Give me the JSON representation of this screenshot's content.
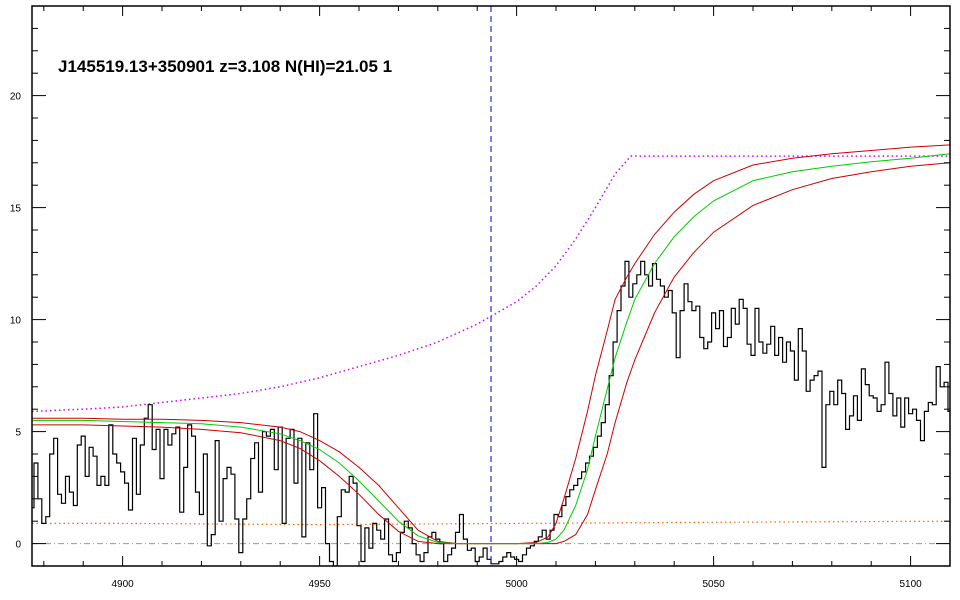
{
  "chart_data": {
    "type": "line",
    "title": "J145519.13+350901 z=3.108 N(HI)=21.05 1",
    "xlabel": "",
    "ylabel": "",
    "xlim": [
      4877,
      5110
    ],
    "ylim": [
      -1,
      24
    ],
    "x_ticks": [
      4900,
      4950,
      5000,
      5050,
      5100
    ],
    "y_ticks": [
      0,
      5,
      10,
      15,
      20
    ],
    "grid": false,
    "legend": "none",
    "marker_line": {
      "x": 4993.5,
      "style": "dashed",
      "color": "#0000cc"
    },
    "colors": {
      "spectrum": "#000000",
      "model_fit": "#00cc00",
      "model_bounds": "#cc0000",
      "continuum": "#cc00ff",
      "error": "#ff6600",
      "zero_line": "#999999",
      "marker": "#0000cc"
    },
    "series": [
      {
        "role": "spectrum",
        "style": "steps",
        "x": [
          4877,
          4878,
          4879,
          4880,
          4881,
          4882,
          4883,
          4884,
          4885,
          4886,
          4887,
          4888,
          4889,
          4890,
          4891,
          4892,
          4893,
          4894,
          4895,
          4896,
          4897,
          4898,
          4899,
          4900,
          4901,
          4902,
          4903,
          4904,
          4905,
          4906,
          4907,
          4908,
          4909,
          4910,
          4911,
          4912,
          4913,
          4914,
          4915,
          4916,
          4917,
          4918,
          4919,
          4920,
          4921,
          4922,
          4923,
          4924,
          4925,
          4926,
          4927,
          4928,
          4929,
          4930,
          4931,
          4932,
          4933,
          4934,
          4935,
          4936,
          4937,
          4938,
          4939,
          4940,
          4941,
          4942,
          4943,
          4944,
          4945,
          4946,
          4947,
          4948,
          4949,
          4950,
          4951,
          4952,
          4953,
          4954,
          4955,
          4956,
          4957,
          4958,
          4959,
          4960,
          4961,
          4962,
          4963,
          4964,
          4965,
          4966,
          4967,
          4968,
          4969,
          4970,
          4971,
          4972,
          4973,
          4974,
          4975,
          4976,
          4977,
          4978,
          4979,
          4980,
          4981,
          4982,
          4983,
          4984,
          4985,
          4986,
          4987,
          4988,
          4989,
          4990,
          4991,
          4992,
          4993,
          4994,
          4995,
          4996,
          4997,
          4998,
          4999,
          5000,
          5001,
          5002,
          5003,
          5004,
          5005,
          5006,
          5007,
          5008,
          5009,
          5010,
          5011,
          5012,
          5013,
          5014,
          5015,
          5016,
          5017,
          5018,
          5019,
          5020,
          5021,
          5022,
          5023,
          5024,
          5025,
          5026,
          5027,
          5028,
          5029,
          5030,
          5031,
          5032,
          5033,
          5034,
          5035,
          5036,
          5037,
          5038,
          5039,
          5040,
          5041,
          5042,
          5043,
          5044,
          5045,
          5046,
          5047,
          5048,
          5049,
          5050,
          5051,
          5052,
          5053,
          5054,
          5055,
          5056,
          5057,
          5058,
          5059,
          5060,
          5061,
          5062,
          5063,
          5064,
          5065,
          5066,
          5067,
          5068,
          5069,
          5070,
          5071,
          5072,
          5073,
          5074,
          5075,
          5076,
          5077,
          5078,
          5079,
          5080,
          5081,
          5082,
          5083,
          5084,
          5085,
          5086,
          5087,
          5088,
          5089,
          5090,
          5091,
          5092,
          5093,
          5094,
          5095,
          5096,
          5097,
          5098,
          5099,
          5100,
          5101,
          5102,
          5103,
          5104,
          5105,
          5106,
          5107,
          5108,
          5109,
          5110
        ],
        "y": [
          1.6,
          3.6,
          2.0,
          0.9,
          1.2,
          4.0,
          4.7,
          2.2,
          1.8,
          3.0,
          2.3,
          1.7,
          4.4,
          4.8,
          3.0,
          4.3,
          3.9,
          2.6,
          3.0,
          2.6,
          5.3,
          4.0,
          3.6,
          3.2,
          2.7,
          1.5,
          4.7,
          2.2,
          4.4,
          5.6,
          6.2,
          4.2,
          5.1,
          2.9,
          5.1,
          4.4,
          4.9,
          5.2,
          1.4,
          3.4,
          5.3,
          4.8,
          2.3,
          1.3,
          4.0,
          -0.1,
          0.4,
          4.6,
          1.0,
          2.9,
          3.4,
          3.1,
          1.1,
          -0.4,
          1.1,
          2.0,
          3.8,
          4.5,
          2.3,
          5.0,
          4.8,
          5.1,
          3.3,
          5.2,
          0.9,
          4.7,
          5.1,
          2.7,
          4.7,
          0.3,
          4.5,
          3.3,
          5.8,
          1.6,
          2.5,
          0.0,
          -0.8,
          -1.0,
          1.2,
          2.4,
          2.3,
          3.0,
          2.7,
          0.8,
          -0.8,
          0.7,
          -0.2,
          0.9,
          0.6,
          0.2,
          1.1,
          -0.5,
          -0.8,
          -0.4,
          0.5,
          1.0,
          0.7,
          0.0,
          -0.5,
          -0.8,
          -0.4,
          0.3,
          0.5,
          0.2,
          0.0,
          -0.8,
          -0.5,
          -0.2,
          0.5,
          1.3,
          0.2,
          -0.3,
          -0.2,
          -0.8,
          -0.6,
          -0.2,
          -0.7,
          -0.9,
          -0.9,
          -0.8,
          -0.6,
          -0.4,
          -0.6,
          -0.7,
          -0.8,
          -0.5,
          -0.2,
          -0.1,
          0.1,
          0.3,
          0.6,
          0.2,
          0.6,
          1.3,
          1.2,
          1.7,
          2.1,
          2.4,
          2.6,
          2.9,
          3.2,
          3.6,
          3.9,
          4.3,
          4.8,
          5.4,
          6.2,
          7.5,
          9.0,
          10.4,
          11.5,
          12.6,
          11.0,
          11.6,
          12.0,
          12.6,
          12.0,
          11.5,
          12.5,
          11.8,
          11.5,
          11.0,
          11.3,
          10.3,
          8.3,
          10.4,
          11.6,
          10.8,
          10.4,
          10.6,
          9.2,
          8.7,
          9.0,
          10.3,
          9.6,
          10.4,
          8.8,
          9.2,
          10.5,
          9.8,
          10.9,
          10.5,
          8.9,
          8.4,
          10.5,
          9.0,
          8.5,
          8.9,
          9.7,
          8.4,
          9.2,
          8.1,
          9.0,
          8.6,
          7.3,
          9.6,
          8.6,
          6.8,
          7.3,
          7.5,
          7.7,
          3.4,
          6.2,
          6.8,
          6.2,
          7.3,
          6.7,
          5.1,
          5.7,
          6.6,
          5.5,
          7.8,
          7.1,
          6.6,
          6.5,
          5.9,
          6.2,
          8.1,
          6.7,
          5.7,
          6.5,
          5.2,
          6.5,
          5.8,
          6.0,
          5.5,
          4.6,
          5.9,
          6.3,
          6.2,
          7.9,
          7.0,
          7.2,
          5.9
        ]
      },
      {
        "role": "model_fit",
        "name": "",
        "x": [
          4877,
          4880,
          4890,
          4900,
          4910,
          4920,
          4930,
          4940,
          4945,
          4950,
          4955,
          4960,
          4965,
          4970,
          4975,
          4980,
          4985,
          4990,
          4995,
          5000,
          5005,
          5008,
          5010,
          5012,
          5015,
          5018,
          5020,
          5023,
          5025,
          5028,
          5030,
          5035,
          5040,
          5045,
          5050,
          5060,
          5070,
          5080,
          5090,
          5100,
          5110
        ],
        "y": [
          5.5,
          5.5,
          5.5,
          5.45,
          5.4,
          5.35,
          5.2,
          4.9,
          4.6,
          4.2,
          3.6,
          2.8,
          1.9,
          1.0,
          0.35,
          0.05,
          0.0,
          0.0,
          0.0,
          0.0,
          0.0,
          0.05,
          0.2,
          0.6,
          1.7,
          3.3,
          4.8,
          6.9,
          8.3,
          9.9,
          10.9,
          12.5,
          13.7,
          14.6,
          15.3,
          16.2,
          16.6,
          16.85,
          17.05,
          17.2,
          17.4
        ]
      },
      {
        "role": "model_bound_upper",
        "name": "",
        "x": [
          4877,
          4880,
          4890,
          4900,
          4910,
          4920,
          4930,
          4940,
          4945,
          4950,
          4955,
          4960,
          4965,
          4970,
          4975,
          4980,
          4985,
          4990,
          4995,
          5000,
          5005,
          5008,
          5010,
          5012,
          5015,
          5018,
          5020,
          5023,
          5025,
          5028,
          5030,
          5035,
          5040,
          5045,
          5050,
          5060,
          5070,
          5080,
          5090,
          5100,
          5110
        ],
        "y": [
          5.6,
          5.6,
          5.6,
          5.55,
          5.55,
          5.5,
          5.4,
          5.2,
          5.0,
          4.6,
          4.1,
          3.4,
          2.6,
          1.6,
          0.6,
          0.1,
          0.0,
          0.0,
          0.0,
          0.0,
          0.05,
          0.3,
          0.9,
          2.0,
          3.8,
          5.9,
          7.5,
          9.5,
          10.9,
          11.9,
          12.5,
          13.8,
          14.8,
          15.6,
          16.2,
          16.9,
          17.2,
          17.4,
          17.55,
          17.7,
          17.8
        ]
      },
      {
        "role": "model_bound_lower",
        "name": "",
        "x": [
          4877,
          4880,
          4890,
          4900,
          4910,
          4920,
          4930,
          4940,
          4945,
          4950,
          4955,
          4960,
          4965,
          4970,
          4975,
          4980,
          4985,
          4990,
          4995,
          5000,
          5005,
          5008,
          5010,
          5012,
          5015,
          5018,
          5020,
          5023,
          5025,
          5028,
          5030,
          5035,
          5040,
          5045,
          5050,
          5060,
          5070,
          5080,
          5090,
          5100,
          5110
        ],
        "y": [
          5.3,
          5.3,
          5.3,
          5.25,
          5.2,
          5.1,
          4.95,
          4.6,
          4.25,
          3.7,
          3.0,
          2.2,
          1.3,
          0.55,
          0.1,
          0.0,
          0.0,
          0.0,
          0.0,
          0.0,
          0.0,
          0.0,
          0.0,
          0.1,
          0.4,
          1.3,
          2.4,
          4.0,
          5.4,
          7.2,
          8.2,
          10.3,
          11.9,
          13.0,
          13.9,
          15.1,
          15.8,
          16.3,
          16.6,
          16.85,
          17.0
        ]
      },
      {
        "role": "continuum",
        "style": "dotted",
        "name": "",
        "x": [
          4877,
          4890,
          4900,
          4910,
          4920,
          4930,
          4940,
          4950,
          4960,
          4970,
          4980,
          4990,
          4995,
          5000,
          5005,
          5010,
          5015,
          5020,
          5025,
          5029,
          5040,
          5060,
          5080,
          5100,
          5110
        ],
        "y": [
          5.9,
          6.0,
          6.1,
          6.3,
          6.5,
          6.7,
          7.0,
          7.4,
          7.9,
          8.4,
          9.0,
          9.8,
          10.3,
          10.8,
          11.5,
          12.4,
          13.6,
          15.0,
          16.5,
          17.3,
          17.3,
          17.3,
          17.3,
          17.3,
          17.3
        ]
      },
      {
        "role": "error",
        "style": "dotted",
        "name": "",
        "x": [
          4877,
          4900,
          4950,
          5000,
          5050,
          5110
        ],
        "y": [
          0.9,
          0.9,
          0.85,
          0.9,
          0.95,
          1.0
        ]
      },
      {
        "role": "zero_line",
        "style": "dash-dot",
        "name": "",
        "x": [
          4877,
          5110
        ],
        "y": [
          0,
          0
        ]
      }
    ]
  }
}
